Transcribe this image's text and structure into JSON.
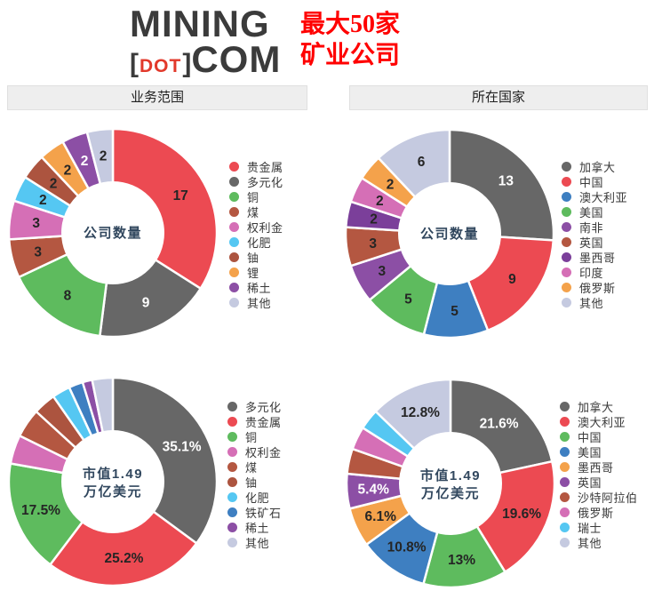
{
  "header": {
    "logo": {
      "word1": "MINING",
      "bracket_open": "[",
      "dot": "DOT",
      "bracket_close": "]",
      "word2": "COM"
    },
    "title_line1": "最大50家",
    "title_line2": "矿业公司",
    "title_color": "#FF0000"
  },
  "sections": {
    "left": "业务范围",
    "right": "所在国家"
  },
  "palette": {
    "red": "#EC4A52",
    "gray": "#676767",
    "green": "#5EBB5E",
    "blue": "#3E7FC1",
    "brown": "#B45741",
    "pink": "#D56FB6",
    "cyan": "#55C7F2",
    "orange": "#F4A24B",
    "purple": "#8C4FA5",
    "dark_purple": "#7B3F9A",
    "lavender": "#C5CAE0"
  },
  "chart_data": [
    {
      "id": "business-scope-company-count",
      "type": "pie",
      "variant": "donut",
      "section": "业务范围",
      "center_label": [
        "公司数量"
      ],
      "categories": [
        "贵金属",
        "多元化",
        "铜",
        "煤",
        "权利金",
        "化肥",
        "铀",
        "锂",
        "稀土",
        "其他"
      ],
      "values": [
        17,
        9,
        8,
        3,
        3,
        2,
        2,
        2,
        2,
        2
      ],
      "labels": [
        "17",
        "9",
        "8",
        "3",
        "3",
        "2",
        "2",
        "2",
        "2",
        "2"
      ],
      "colors": [
        "#EC4A52",
        "#676767",
        "#5EBB5E",
        "#B45741",
        "#D56FB6",
        "#55C7F2",
        "#AC543F",
        "#F4A24B",
        "#8C4FA5",
        "#C5CAE0"
      ],
      "label_colors": [
        "#252525",
        "#FFFFFF",
        "#252525",
        "#252525",
        "#252525",
        "#252525",
        "#252525",
        "#252525",
        "#FFFFFF",
        "#252525"
      ],
      "total": 50,
      "legend_position": "right",
      "start_angle": 0,
      "direction": "clockwise"
    },
    {
      "id": "country-company-count",
      "type": "pie",
      "variant": "donut",
      "section": "所在国家",
      "center_label": [
        "公司数量"
      ],
      "categories": [
        "加拿大",
        "中国",
        "澳大利亚",
        "美国",
        "南非",
        "英国",
        "墨西哥",
        "印度",
        "俄罗斯",
        "其他"
      ],
      "values": [
        13,
        9,
        5,
        5,
        3,
        3,
        2,
        2,
        2,
        6
      ],
      "labels": [
        "13",
        "9",
        "5",
        "5",
        "3",
        "3",
        "2",
        "2",
        "2",
        "6"
      ],
      "colors": [
        "#676767",
        "#EC4A52",
        "#3E7FC1",
        "#5EBB5E",
        "#8C4FA5",
        "#B45741",
        "#7B3F9A",
        "#D56FB6",
        "#F4A24B",
        "#C5CAE0"
      ],
      "label_colors": [
        "#FFFFFF",
        "#252525",
        "#252525",
        "#252525",
        "#252525",
        "#252525",
        "#252525",
        "#252525",
        "#252525",
        "#252525"
      ],
      "total": 50,
      "legend_position": "right",
      "start_angle": 0,
      "direction": "clockwise"
    },
    {
      "id": "business-scope-market-cap",
      "type": "pie",
      "variant": "donut",
      "section": "业务范围",
      "center_label": [
        "市值1.49",
        "万亿美元"
      ],
      "categories": [
        "多元化",
        "贵金属",
        "铜",
        "权利金",
        "煤",
        "铀",
        "化肥",
        "铁矿石",
        "稀土",
        "其他"
      ],
      "values": [
        35.1,
        25.2,
        17.5,
        4.5,
        4.5,
        3.5,
        2.8,
        2.2,
        1.5,
        3.2
      ],
      "labels": [
        "35.1%",
        "25.2%",
        "17.5%",
        "",
        "",
        "",
        "",
        "",
        "",
        ""
      ],
      "colors": [
        "#676767",
        "#EC4A52",
        "#5EBB5E",
        "#D56FB6",
        "#B45741",
        "#AC543F",
        "#55C7F2",
        "#3E7FC1",
        "#8C4FA5",
        "#C5CAE0"
      ],
      "label_colors": [
        "#FFFFFF",
        "#252525",
        "#252525",
        "",
        "",
        "",
        "",
        "",
        "",
        ""
      ],
      "units": "%",
      "legend_position": "right",
      "start_angle": 0,
      "direction": "clockwise"
    },
    {
      "id": "country-market-cap",
      "type": "pie",
      "variant": "donut",
      "section": "所在国家",
      "center_label": [
        "市值1.49",
        "万亿美元"
      ],
      "categories": [
        "加拿大",
        "澳大利亚",
        "中国",
        "美国",
        "墨西哥",
        "英国",
        "沙特阿拉伯",
        "俄罗斯",
        "瑞士",
        "其他"
      ],
      "values": [
        21.6,
        19.6,
        13,
        10.8,
        6.1,
        5.4,
        3.9,
        3.6,
        3.2,
        12.8
      ],
      "labels": [
        "21.6%",
        "19.6%",
        "13%",
        "10.8%",
        "6.1%",
        "5.4%",
        "",
        "",
        "",
        "12.8%"
      ],
      "colors": [
        "#676767",
        "#EC4A52",
        "#5EBB5E",
        "#3E7FC1",
        "#F4A24B",
        "#8C4FA5",
        "#B45741",
        "#D56FB6",
        "#55C7F2",
        "#C5CAE0"
      ],
      "label_colors": [
        "#FFFFFF",
        "#252525",
        "#252525",
        "#252525",
        "#252525",
        "#FFFFFF",
        "",
        "",
        "",
        "#252525"
      ],
      "units": "%",
      "legend_position": "right",
      "start_angle": 0,
      "direction": "clockwise"
    }
  ]
}
